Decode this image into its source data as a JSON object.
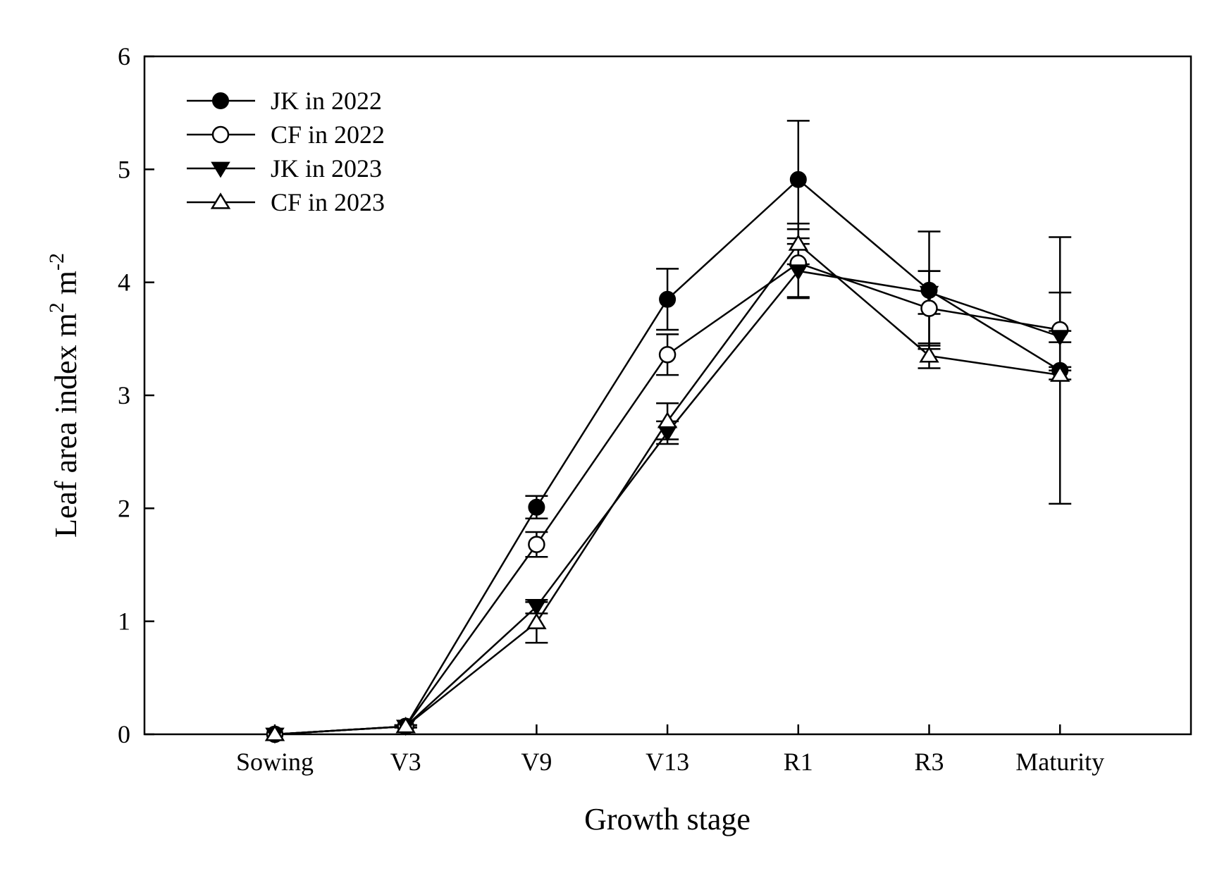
{
  "chart_data": {
    "type": "line",
    "title": "",
    "xlabel": "Growth stage",
    "ylabel": "Leaf area index m",
    "ylabel_unit_sup1": "2",
    "ylabel_unit_mid": " m",
    "ylabel_unit_sup2": "-2",
    "categories": [
      "Sowing",
      "V3",
      "V9",
      "V13",
      "R1",
      "R3",
      "Maturity"
    ],
    "ylim": [
      0,
      6
    ],
    "yticks": [
      "0",
      "1",
      "2",
      "3",
      "4",
      "5",
      "6"
    ],
    "legend_position": "top-left",
    "series": [
      {
        "name": "JK in 2022",
        "marker": "circle-filled",
        "values": [
          0,
          0.07,
          2.01,
          3.85,
          4.91,
          3.93,
          3.22
        ],
        "errors": [
          0,
          0.01,
          0.1,
          0.27,
          0.52,
          0.52,
          1.18
        ]
      },
      {
        "name": "CF in 2022",
        "marker": "circle-open",
        "values": [
          0,
          0.07,
          1.68,
          3.36,
          4.17,
          3.77,
          3.58
        ],
        "errors": [
          0,
          0.01,
          0.11,
          0.18,
          0.3,
          0.33,
          0.33
        ]
      },
      {
        "name": "JK in 2023",
        "marker": "triangle-down-filled",
        "values": [
          0,
          0.07,
          1.13,
          2.67,
          4.1,
          3.91,
          3.52
        ],
        "errors": [
          0,
          0.01,
          0.06,
          0.1,
          0.24,
          0.19,
          0.05
        ]
      },
      {
        "name": "CF in 2023",
        "marker": "triangle-up-open",
        "values": [
          0,
          0.07,
          0.99,
          2.77,
          4.34,
          3.35,
          3.18
        ],
        "errors": [
          0,
          0.01,
          0.18,
          0.16,
          0.18,
          0.11,
          0.04
        ]
      }
    ]
  }
}
